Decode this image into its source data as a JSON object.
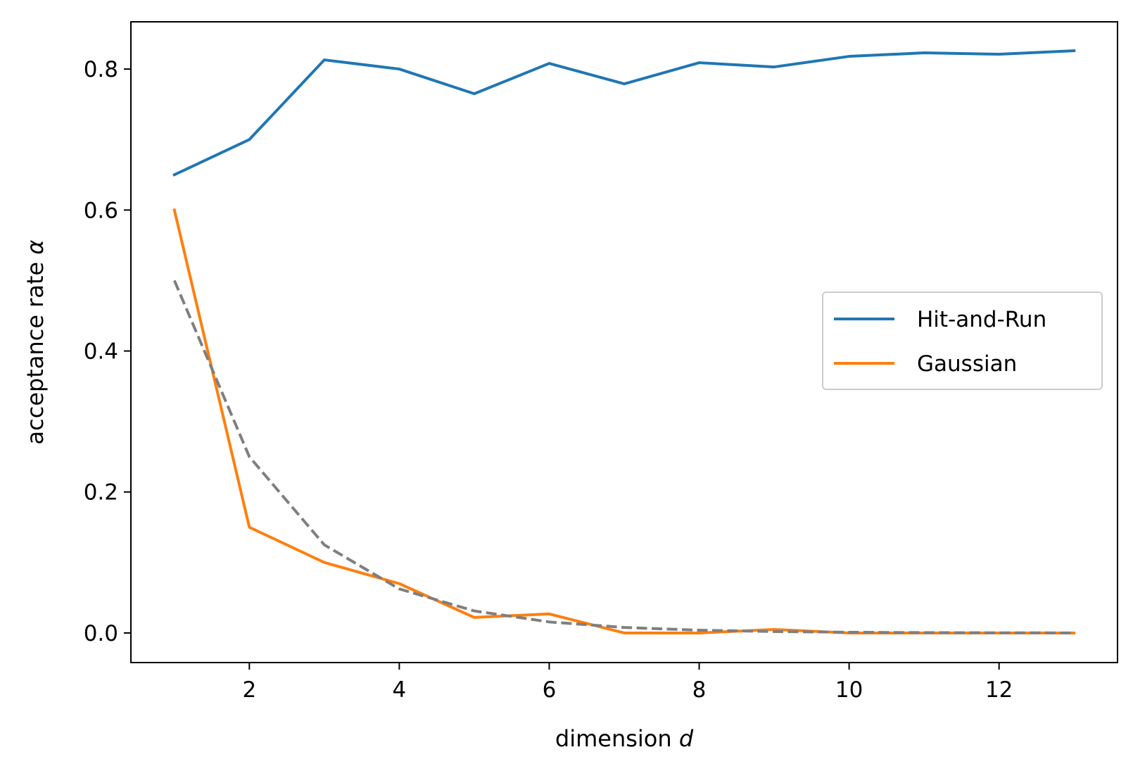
{
  "chart_data": {
    "type": "line",
    "xlabel": "dimension",
    "xlabel_var": "d",
    "ylabel": "acceptance rate",
    "ylabel_var": "α",
    "xlim": [
      0.42,
      13.58
    ],
    "ylim": [
      -0.042,
      0.867
    ],
    "x_ticks": [
      2,
      4,
      6,
      8,
      10,
      12
    ],
    "x_tick_labels": [
      "2",
      "4",
      "6",
      "8",
      "10",
      "12"
    ],
    "y_ticks": [
      0.0,
      0.2,
      0.4,
      0.6,
      0.8
    ],
    "y_tick_labels": [
      "0.0",
      "0.2",
      "0.4",
      "0.6",
      "0.8"
    ],
    "grid": false,
    "legend_position": "center-right",
    "x": [
      1,
      2,
      3,
      4,
      5,
      6,
      7,
      8,
      9,
      10,
      11,
      12,
      13
    ],
    "series": [
      {
        "name": "Hit-and-Run",
        "color": "#1f77b4",
        "style": "solid",
        "in_legend": true,
        "values": [
          0.65,
          0.7,
          0.813,
          0.8,
          0.765,
          0.808,
          0.779,
          0.809,
          0.803,
          0.818,
          0.823,
          0.821,
          0.826
        ]
      },
      {
        "name": "Gaussian",
        "color": "#ff7f0e",
        "style": "solid",
        "in_legend": true,
        "values": [
          0.6,
          0.15,
          0.1,
          0.07,
          0.022,
          0.027,
          0.0,
          0.0,
          0.005,
          0.0,
          0.0,
          0.0,
          0.0
        ]
      },
      {
        "color": "#7f7f7f",
        "style": "dashed",
        "in_legend": false,
        "values": [
          0.5,
          0.25,
          0.125,
          0.0625,
          0.03125,
          0.015625,
          0.0078,
          0.0039,
          0.002,
          0.001,
          0.0005,
          0.0002,
          0.0001
        ]
      }
    ]
  }
}
